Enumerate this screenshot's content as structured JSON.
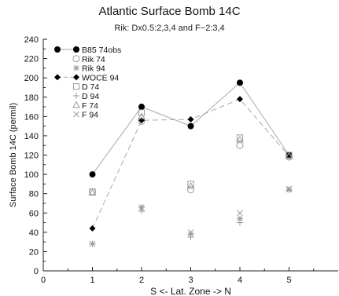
{
  "chart_data": {
    "type": "line",
    "title": "Atlantic Surface Bomb 14C",
    "subtitle": "Rik: Dx0.5:2,3,4 and F−2:3,4",
    "xlabel": "S <- Lat. Zone -> N",
    "ylabel": "Surface Bomb 14C (permil)",
    "xlim": [
      0,
      6
    ],
    "ylim": [
      0,
      240
    ],
    "xticks": [
      "0",
      "1",
      "2",
      "3",
      "4",
      "5"
    ],
    "yticks": [
      "0",
      "20",
      "40",
      "60",
      "80",
      "100",
      "120",
      "140",
      "160",
      "180",
      "200",
      "220",
      "240"
    ],
    "grid": false,
    "legend_position": "top-left",
    "series": [
      {
        "name": "B85 74obs",
        "marker": "filled-circle",
        "line": "solid",
        "color": "#aaaaaa",
        "x": [
          1,
          2,
          3,
          4,
          5
        ],
        "y": [
          100,
          170,
          150,
          195,
          120
        ]
      },
      {
        "name": "Rik 74",
        "marker": "open-circle",
        "line": "none",
        "color": "#999999",
        "x": [
          1,
          2,
          3,
          4,
          5
        ],
        "y": [
          82,
          155,
          84,
          130,
          118
        ]
      },
      {
        "name": "Rik 94",
        "marker": "asterisk",
        "line": "none",
        "color": "#999999",
        "x": [
          1,
          2,
          3,
          4,
          5
        ],
        "y": [
          28,
          66,
          38,
          54,
          84
        ]
      },
      {
        "name": "WOCE 94",
        "marker": "filled-diamond",
        "line": "dashed",
        "color": "#aaaaaa",
        "x": [
          1,
          2,
          3,
          4,
          5
        ],
        "y": [
          44,
          156,
          157,
          178,
          119
        ]
      },
      {
        "name": "D 74",
        "marker": "open-square",
        "line": "none",
        "color": "#999999",
        "x": [
          1,
          2,
          3,
          4,
          5
        ],
        "y": [
          82,
          164,
          90,
          138,
          120
        ]
      },
      {
        "name": "D 94",
        "marker": "plus",
        "line": "none",
        "color": "#999999",
        "x": [
          1,
          2,
          3,
          4,
          5
        ],
        "y": [
          28,
          62,
          35,
          50,
          84
        ]
      },
      {
        "name": "F 74",
        "marker": "open-triangle",
        "line": "none",
        "color": "#999999",
        "x": [
          1,
          2,
          3,
          4,
          5
        ],
        "y": [
          81,
          160,
          88,
          136,
          119
        ]
      },
      {
        "name": "F 94",
        "marker": "x",
        "line": "none",
        "color": "#999999",
        "x": [
          1,
          2,
          3,
          4,
          5
        ],
        "y": [
          28,
          64,
          40,
          60,
          85
        ]
      }
    ]
  }
}
